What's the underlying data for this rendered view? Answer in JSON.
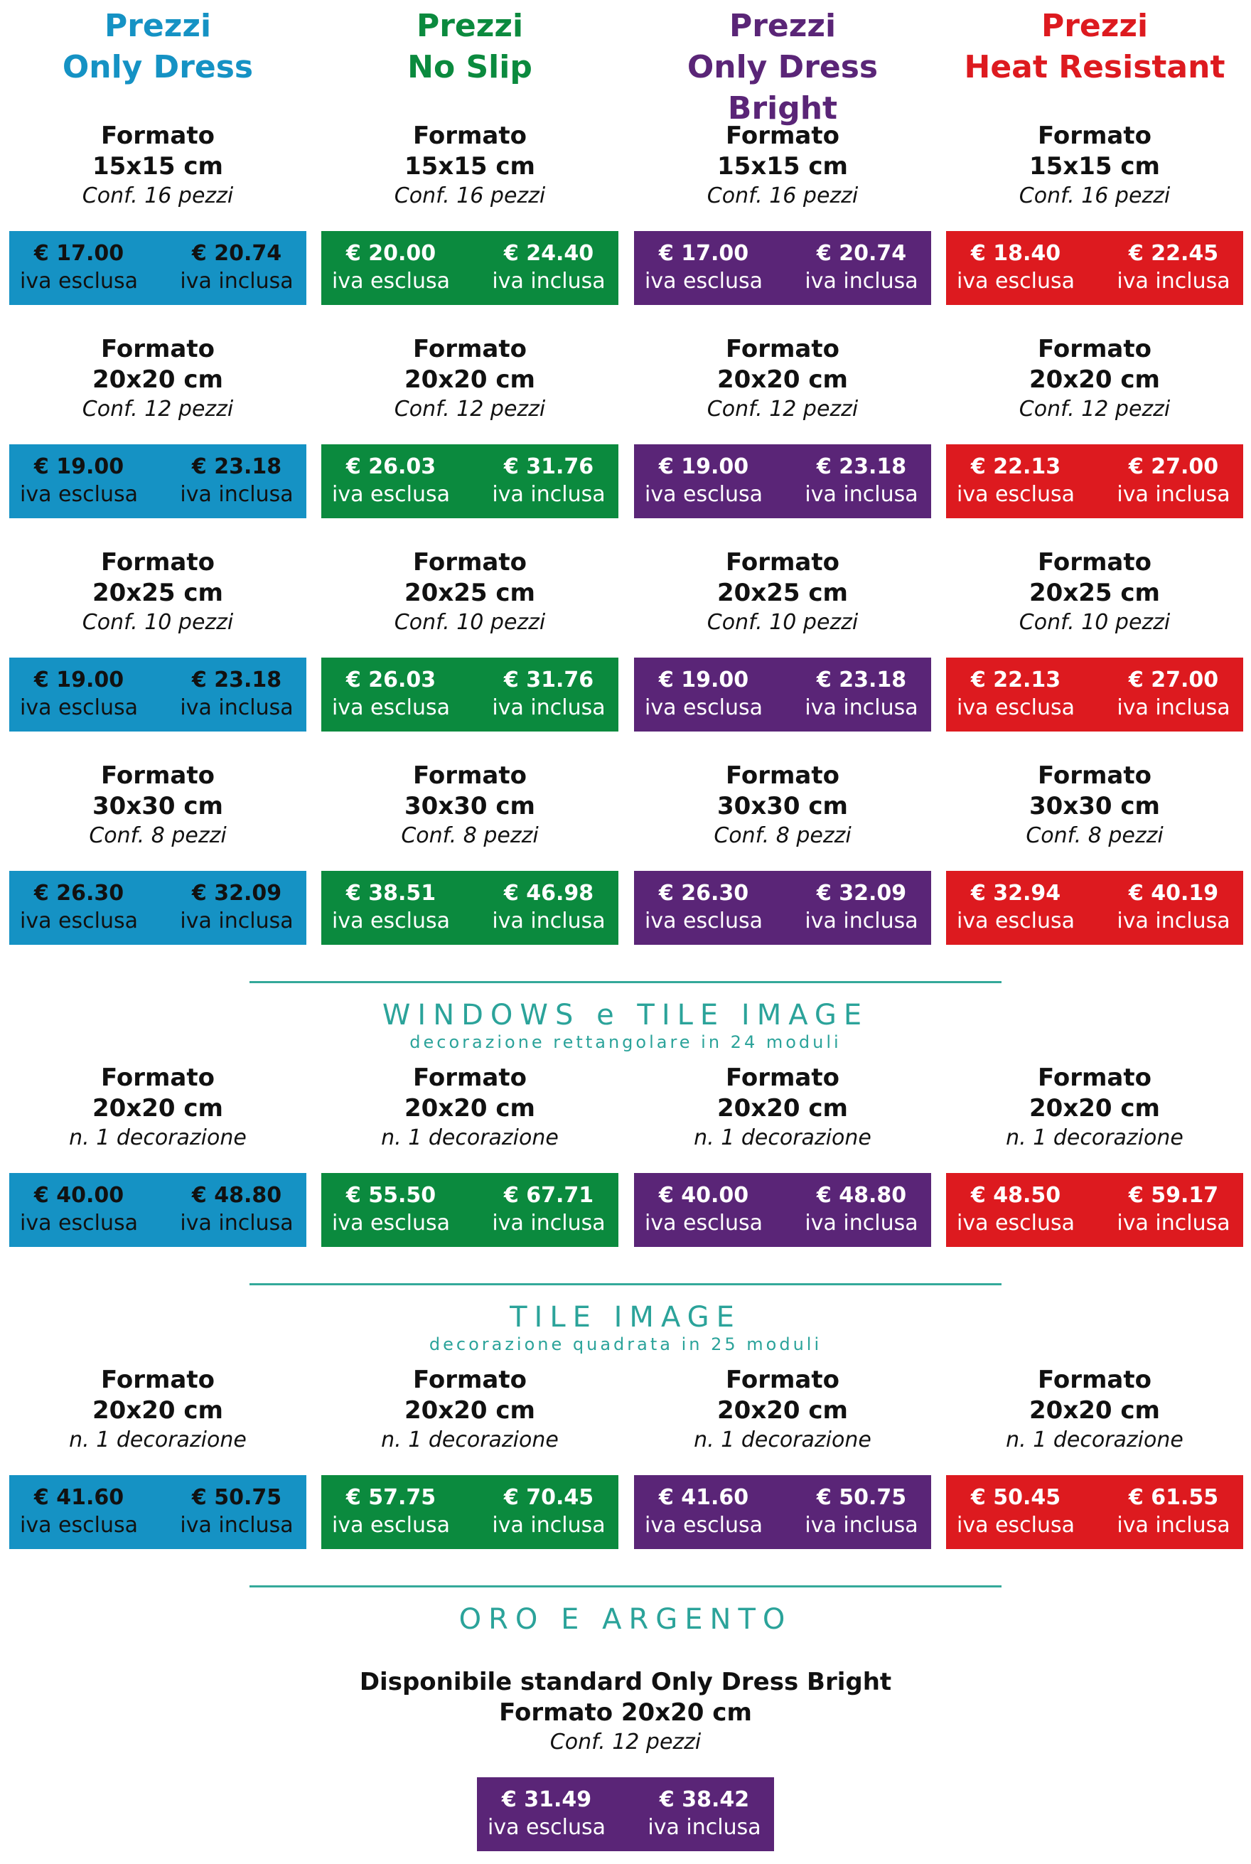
{
  "colors": {
    "only_dress": "#1592c4",
    "no_slip": "#0b8a3e",
    "bright": "#5a2577",
    "heat": "#dd1a1f",
    "teal": "#2ba39a"
  },
  "columns": [
    {
      "head1": "Prezzi",
      "head2": "Only Dress",
      "color": "#1592c4",
      "formats": [
        {
          "f1": "Formato",
          "f2": "15x15 cm",
          "f3": "Conf. 16 pezzi",
          "ex": "€ 17.00",
          "exl": "iva esclusa",
          "in": "€ 20.74",
          "inl": "iva inclusa"
        },
        {
          "f1": "Formato",
          "f2": "20x20 cm",
          "f3": "Conf. 12 pezzi",
          "ex": "€ 19.00",
          "exl": "iva esclusa",
          "in": "€ 23.18",
          "inl": "iva inclusa"
        },
        {
          "f1": "Formato",
          "f2": "20x25 cm",
          "f3": "Conf. 10 pezzi",
          "ex": "€ 19.00",
          "exl": "iva esclusa",
          "in": "€ 23.18",
          "inl": "iva inclusa"
        },
        {
          "f1": "Formato",
          "f2": "30x30 cm",
          "f3": "Conf. 8 pezzi",
          "ex": "€ 26.30",
          "exl": "iva esclusa",
          "in": "€ 32.09",
          "inl": "iva inclusa"
        },
        {
          "f1": "Formato",
          "f2": "20x20 cm",
          "f3": "n. 1 decorazione",
          "ex": "€ 40.00",
          "exl": "iva esclusa",
          "in": "€ 48.80",
          "inl": "iva inclusa"
        },
        {
          "f1": "Formato",
          "f2": "20x20 cm",
          "f3": "n. 1 decorazione",
          "ex": "€ 41.60",
          "exl": "iva esclusa",
          "in": "€ 50.75",
          "inl": "iva inclusa"
        }
      ]
    },
    {
      "head1": "Prezzi",
      "head2": "No Slip",
      "color": "#0b8a3e",
      "formats": [
        {
          "f1": "Formato",
          "f2": "15x15 cm",
          "f3": "Conf. 16 pezzi",
          "ex": "€ 20.00",
          "exl": "iva esclusa",
          "in": "€ 24.40",
          "inl": "iva inclusa"
        },
        {
          "f1": "Formato",
          "f2": "20x20 cm",
          "f3": "Conf. 12 pezzi",
          "ex": "€ 26.03",
          "exl": "iva esclusa",
          "in": "€ 31.76",
          "inl": "iva inclusa"
        },
        {
          "f1": "Formato",
          "f2": "20x25 cm",
          "f3": "Conf. 10 pezzi",
          "ex": "€ 26.03",
          "exl": "iva esclusa",
          "in": "€ 31.76",
          "inl": "iva inclusa"
        },
        {
          "f1": "Formato",
          "f2": "30x30 cm",
          "f3": "Conf. 8 pezzi",
          "ex": "€ 38.51",
          "exl": "iva esclusa",
          "in": "€ 46.98",
          "inl": "iva inclusa"
        },
        {
          "f1": "Formato",
          "f2": "20x20 cm",
          "f3": "n. 1 decorazione",
          "ex": "€ 55.50",
          "exl": "iva esclusa",
          "in": "€ 67.71",
          "inl": "iva inclusa"
        },
        {
          "f1": "Formato",
          "f2": "20x20 cm",
          "f3": "n. 1 decorazione",
          "ex": "€ 57.75",
          "exl": "iva esclusa",
          "in": "€ 70.45",
          "inl": "iva inclusa"
        }
      ]
    },
    {
      "head1": "Prezzi",
      "head2": "Only Dress Bright",
      "color": "#5a2577",
      "formats": [
        {
          "f1": "Formato",
          "f2": "15x15 cm",
          "f3": "Conf. 16 pezzi",
          "ex": "€ 17.00",
          "exl": "iva esclusa",
          "in": "€ 20.74",
          "inl": "iva inclusa"
        },
        {
          "f1": "Formato",
          "f2": "20x20 cm",
          "f3": "Conf. 12 pezzi",
          "ex": "€ 19.00",
          "exl": "iva esclusa",
          "in": "€ 23.18",
          "inl": "iva inclusa"
        },
        {
          "f1": "Formato",
          "f2": "20x25 cm",
          "f3": "Conf. 10 pezzi",
          "ex": "€ 19.00",
          "exl": "iva esclusa",
          "in": "€ 23.18",
          "inl": "iva inclusa"
        },
        {
          "f1": "Formato",
          "f2": "30x30 cm",
          "f3": "Conf. 8 pezzi",
          "ex": "€ 26.30",
          "exl": "iva esclusa",
          "in": "€ 32.09",
          "inl": "iva inclusa"
        },
        {
          "f1": "Formato",
          "f2": "20x20 cm",
          "f3": "n. 1 decorazione",
          "ex": "€ 40.00",
          "exl": "iva esclusa",
          "in": "€ 48.80",
          "inl": "iva inclusa"
        },
        {
          "f1": "Formato",
          "f2": "20x20 cm",
          "f3": "n. 1 decorazione",
          "ex": "€ 41.60",
          "exl": "iva esclusa",
          "in": "€ 50.75",
          "inl": "iva inclusa"
        }
      ]
    },
    {
      "head1": "Prezzi",
      "head2": "Heat Resistant",
      "color": "#dd1a1f",
      "formats": [
        {
          "f1": "Formato",
          "f2": "15x15 cm",
          "f3": "Conf. 16 pezzi",
          "ex": "€ 18.40",
          "exl": "iva esclusa",
          "in": "€ 22.45",
          "inl": "iva inclusa"
        },
        {
          "f1": "Formato",
          "f2": "20x20 cm",
          "f3": "Conf. 12 pezzi",
          "ex": "€ 22.13",
          "exl": "iva esclusa",
          "in": "€ 27.00",
          "inl": "iva inclusa"
        },
        {
          "f1": "Formato",
          "f2": "20x25 cm",
          "f3": "Conf. 10 pezzi",
          "ex": "€ 22.13",
          "exl": "iva esclusa",
          "in": "€ 27.00",
          "inl": "iva inclusa"
        },
        {
          "f1": "Formato",
          "f2": "30x30 cm",
          "f3": "Conf. 8 pezzi",
          "ex": "€ 32.94",
          "exl": "iva esclusa",
          "in": "€ 40.19",
          "inl": "iva inclusa"
        },
        {
          "f1": "Formato",
          "f2": "20x20 cm",
          "f3": "n. 1 decorazione",
          "ex": "€ 48.50",
          "exl": "iva esclusa",
          "in": "€ 59.17",
          "inl": "iva inclusa"
        },
        {
          "f1": "Formato",
          "f2": "20x20 cm",
          "f3": "n. 1 decorazione",
          "ex": "€ 50.45",
          "exl": "iva esclusa",
          "in": "€ 61.55",
          "inl": "iva inclusa"
        }
      ]
    }
  ],
  "sections": [
    {
      "title": "WINDOWS e TILE IMAGE",
      "subtitle": "decorazione rettangolare in 24 moduli"
    },
    {
      "title": "TILE IMAGE",
      "subtitle": "decorazione quadrata in 25 moduli"
    },
    {
      "title": "ORO E ARGENTO",
      "subtitle": ""
    }
  ],
  "oro": {
    "line1": "Disponibile standard Only Dress Bright",
    "line2": "Formato 20x20 cm",
    "line3": "Conf. 12 pezzi",
    "ex": "€ 31.49",
    "exl": "iva esclusa",
    "in": "€ 38.42",
    "inl": "iva inclusa"
  }
}
